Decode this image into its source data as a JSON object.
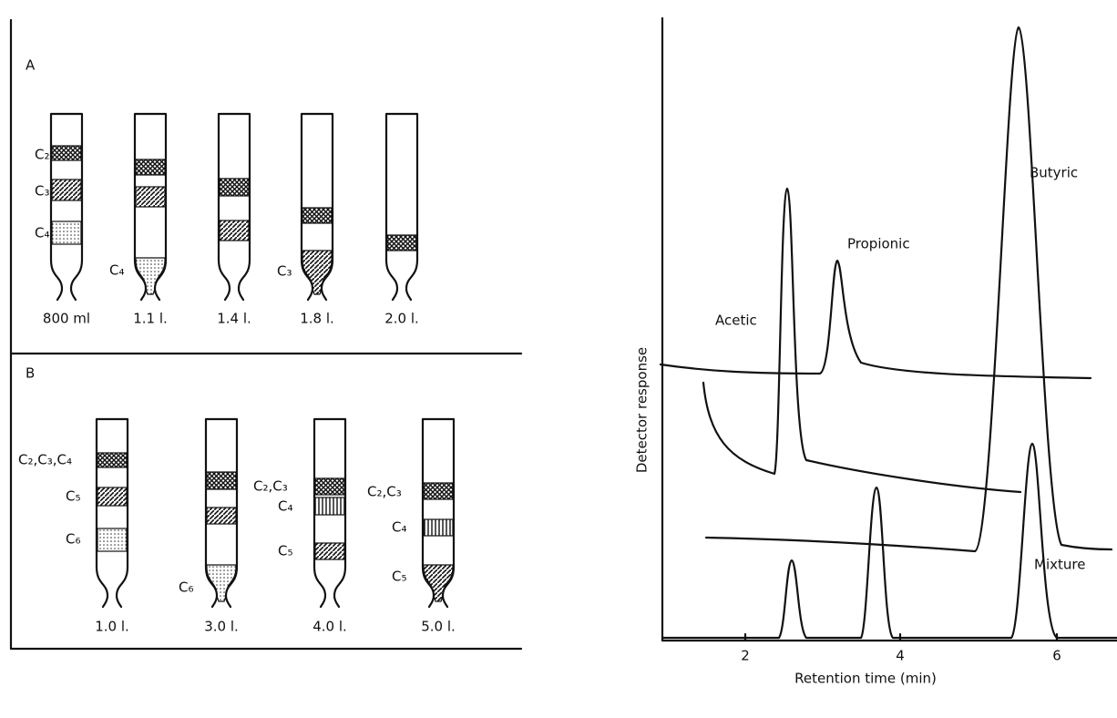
{
  "panel_a": {
    "label": "A",
    "columns": [
      {
        "volume": "800 ml",
        "band_labels": [
          "C₂",
          "C₃",
          "C₄"
        ]
      },
      {
        "volume": "1.1 l.",
        "band_labels": [
          "C₄"
        ]
      },
      {
        "volume": "1.4 l.",
        "band_labels": []
      },
      {
        "volume": "1.8 l.",
        "band_labels": [
          "C₃"
        ]
      },
      {
        "volume": "2.0 l.",
        "band_labels": []
      }
    ]
  },
  "panel_b": {
    "label": "B",
    "columns": [
      {
        "volume": "1.0 l.",
        "band_labels": [
          "C₂,C₃,C₄",
          "C₅",
          "C₆"
        ]
      },
      {
        "volume": "3.0 l.",
        "band_labels": [
          "C₆"
        ]
      },
      {
        "volume": "4.0 l.",
        "band_labels": [
          "C₂,C₃",
          "C₄",
          "C₅"
        ]
      },
      {
        "volume": "5.0 l.",
        "band_labels": [
          "C₂,C₃",
          "C₄",
          "C₅"
        ]
      }
    ]
  },
  "chromatogram": {
    "x_label": "Retention time (min)",
    "y_label": "Detector response",
    "x_ticks": [
      "2",
      "4",
      "6"
    ],
    "peak_labels": [
      "Acetic",
      "Propionic",
      "Butyric",
      "Mixture"
    ]
  }
}
